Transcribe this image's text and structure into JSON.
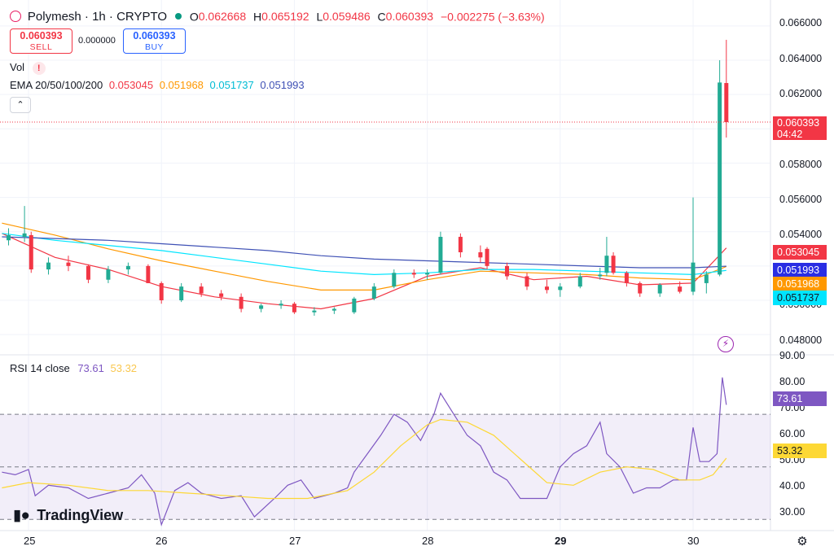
{
  "header": {
    "symbol": "Polymesh · 1h · CRYPTO",
    "o_label": "O",
    "o_value": "0.062668",
    "h_label": "H",
    "h_value": "0.065192",
    "l_label": "L",
    "l_value": "0.059486",
    "c_label": "C",
    "c_value": "0.060393",
    "change": "−0.002275 (−3.63%)"
  },
  "order": {
    "sell_price": "0.060393",
    "sell_label": "SELL",
    "spread": "0.000000",
    "buy_price": "0.060393",
    "buy_label": "BUY"
  },
  "indicators": {
    "vol_label": "Vol",
    "vol_warning": "!",
    "ema_label": "EMA 20/50/100/200",
    "ema20": "0.053045",
    "ema50": "0.051968",
    "ema100": "0.051737",
    "ema200": "0.051993",
    "collapse_icon": "chevron-up-icon"
  },
  "price_axis": {
    "ticks": [
      "0.066000",
      "0.064000",
      "0.062000",
      "0.058000",
      "0.056000",
      "0.054000",
      "0.050000",
      "0.048000"
    ],
    "last_price": "0.060393",
    "countdown": "04:42",
    "ema20_tag": "0.053045",
    "ema200_tag": "0.051993",
    "ema50_tag": "0.051968",
    "ema100_tag": "0.051737"
  },
  "rsi": {
    "label": "RSI 14 close",
    "value": "73.61",
    "ma_value": "53.32",
    "ticks": [
      "90.00",
      "80.00",
      "70.00",
      "60.00",
      "50.00",
      "40.00",
      "30.00"
    ],
    "tag_value": "73.61",
    "tag_ma": "53.32"
  },
  "x_axis": {
    "ticks": [
      "25",
      "26",
      "27",
      "28",
      "29",
      "30"
    ]
  },
  "branding": {
    "logo_text": "TradingView"
  },
  "colors": {
    "up": "#22ab94",
    "down": "#f23645",
    "ema20": "#f23645",
    "ema50": "#ff9800",
    "ema100": "#00e5ff",
    "ema200": "#3f51b5",
    "rsi": "#7e57c2",
    "rsi_ma": "#fdd835"
  },
  "chart_data": [
    {
      "type": "candlestick",
      "title": "Polymesh · 1h · CRYPTO",
      "x_ticks": [
        "25",
        "26",
        "27",
        "28",
        "29",
        "30"
      ],
      "ylim": [
        0.0472,
        0.0668
      ],
      "last_price": 0.060393,
      "candles": [
        {
          "day": 24.85,
          "o": 0.0535,
          "h": 0.0542,
          "l": 0.0532,
          "c": 0.0538
        },
        {
          "day": 24.97,
          "o": 0.0537,
          "h": 0.0555,
          "l": 0.0534,
          "c": 0.0539
        },
        {
          "day": 25.02,
          "o": 0.0538,
          "h": 0.054,
          "l": 0.0516,
          "c": 0.0518
        },
        {
          "day": 25.15,
          "o": 0.0518,
          "h": 0.0525,
          "l": 0.0515,
          "c": 0.0522
        },
        {
          "day": 25.3,
          "o": 0.0522,
          "h": 0.0526,
          "l": 0.0517,
          "c": 0.052
        },
        {
          "day": 25.45,
          "o": 0.052,
          "h": 0.0521,
          "l": 0.051,
          "c": 0.0512
        },
        {
          "day": 25.6,
          "o": 0.0512,
          "h": 0.052,
          "l": 0.051,
          "c": 0.0518
        },
        {
          "day": 25.75,
          "o": 0.0518,
          "h": 0.0522,
          "l": 0.0515,
          "c": 0.052
        },
        {
          "day": 25.9,
          "o": 0.052,
          "h": 0.0521,
          "l": 0.051,
          "c": 0.051
        },
        {
          "day": 26.0,
          "o": 0.051,
          "h": 0.0511,
          "l": 0.0498,
          "c": 0.05
        },
        {
          "day": 26.15,
          "o": 0.05,
          "h": 0.051,
          "l": 0.0499,
          "c": 0.0508
        },
        {
          "day": 26.3,
          "o": 0.0508,
          "h": 0.051,
          "l": 0.0502,
          "c": 0.0504
        },
        {
          "day": 26.45,
          "o": 0.0504,
          "h": 0.0506,
          "l": 0.05,
          "c": 0.0502
        },
        {
          "day": 26.6,
          "o": 0.0502,
          "h": 0.0504,
          "l": 0.0493,
          "c": 0.0495
        },
        {
          "day": 26.75,
          "o": 0.0495,
          "h": 0.0498,
          "l": 0.0493,
          "c": 0.0497
        },
        {
          "day": 26.9,
          "o": 0.0497,
          "h": 0.05,
          "l": 0.0495,
          "c": 0.0498
        },
        {
          "day": 27.0,
          "o": 0.0498,
          "h": 0.0499,
          "l": 0.0492,
          "c": 0.0493
        },
        {
          "day": 27.15,
          "o": 0.0493,
          "h": 0.0496,
          "l": 0.0491,
          "c": 0.0494
        },
        {
          "day": 27.3,
          "o": 0.0494,
          "h": 0.0496,
          "l": 0.0492,
          "c": 0.0495
        },
        {
          "day": 27.45,
          "o": 0.0493,
          "h": 0.0502,
          "l": 0.0492,
          "c": 0.0501
        },
        {
          "day": 27.6,
          "o": 0.0501,
          "h": 0.051,
          "l": 0.05,
          "c": 0.0508
        },
        {
          "day": 27.75,
          "o": 0.0508,
          "h": 0.0518,
          "l": 0.0507,
          "c": 0.0516
        },
        {
          "day": 27.9,
          "o": 0.0516,
          "h": 0.0518,
          "l": 0.0513,
          "c": 0.0515
        },
        {
          "day": 28.0,
          "o": 0.0515,
          "h": 0.0518,
          "l": 0.0512,
          "c": 0.0516
        },
        {
          "day": 28.1,
          "o": 0.0516,
          "h": 0.054,
          "l": 0.0515,
          "c": 0.0537
        },
        {
          "day": 28.25,
          "o": 0.0537,
          "h": 0.0539,
          "l": 0.0525,
          "c": 0.0528
        },
        {
          "day": 28.4,
          "o": 0.0528,
          "h": 0.0532,
          "l": 0.0522,
          "c": 0.0525
        },
        {
          "day": 28.45,
          "o": 0.053,
          "h": 0.0531,
          "l": 0.0518,
          "c": 0.052
        },
        {
          "day": 28.6,
          "o": 0.052,
          "h": 0.0522,
          "l": 0.0512,
          "c": 0.0514
        },
        {
          "day": 28.75,
          "o": 0.0514,
          "h": 0.0516,
          "l": 0.0506,
          "c": 0.0508
        },
        {
          "day": 28.9,
          "o": 0.0508,
          "h": 0.0512,
          "l": 0.0504,
          "c": 0.0506
        },
        {
          "day": 29.0,
          "o": 0.0506,
          "h": 0.051,
          "l": 0.0502,
          "c": 0.0508
        },
        {
          "day": 29.15,
          "o": 0.0508,
          "h": 0.0516,
          "l": 0.0507,
          "c": 0.0514
        },
        {
          "day": 29.3,
          "o": 0.0514,
          "h": 0.0519,
          "l": 0.0512,
          "c": 0.0515
        },
        {
          "day": 29.35,
          "o": 0.0516,
          "h": 0.0537,
          "l": 0.0514,
          "c": 0.0526
        },
        {
          "day": 29.4,
          "o": 0.0526,
          "h": 0.0528,
          "l": 0.0515,
          "c": 0.0516
        },
        {
          "day": 29.5,
          "o": 0.0516,
          "h": 0.0517,
          "l": 0.0508,
          "c": 0.051
        },
        {
          "day": 29.6,
          "o": 0.051,
          "h": 0.0511,
          "l": 0.0502,
          "c": 0.0504
        },
        {
          "day": 29.75,
          "o": 0.0504,
          "h": 0.051,
          "l": 0.0502,
          "c": 0.0509
        },
        {
          "day": 29.9,
          "o": 0.0508,
          "h": 0.0511,
          "l": 0.0504,
          "c": 0.0505
        },
        {
          "day": 30.0,
          "o": 0.0505,
          "h": 0.056,
          "l": 0.0503,
          "c": 0.0522
        },
        {
          "day": 30.1,
          "o": 0.051,
          "h": 0.0517,
          "l": 0.0504,
          "c": 0.0515
        },
        {
          "day": 30.2,
          "o": 0.0515,
          "h": 0.064,
          "l": 0.0514,
          "c": 0.0627
        },
        {
          "day": 30.25,
          "o": 0.06267,
          "h": 0.06519,
          "l": 0.05949,
          "c": 0.06039
        }
      ],
      "series": [
        {
          "name": "EMA 20",
          "x": [
            24.8,
            25.2,
            25.6,
            26.0,
            26.4,
            26.8,
            27.2,
            27.6,
            28.0,
            28.4,
            28.8,
            29.2,
            29.6,
            30.0,
            30.25
          ],
          "values": [
            0.0539,
            0.0525,
            0.0518,
            0.0508,
            0.0502,
            0.0498,
            0.0495,
            0.0501,
            0.0514,
            0.0519,
            0.0512,
            0.0514,
            0.0509,
            0.051,
            0.05305
          ]
        },
        {
          "name": "EMA 50",
          "x": [
            24.8,
            25.2,
            25.6,
            26.0,
            26.4,
            26.8,
            27.2,
            27.6,
            28.0,
            28.4,
            28.8,
            29.2,
            29.6,
            30.0,
            30.25
          ],
          "values": [
            0.0545,
            0.0538,
            0.053,
            0.0523,
            0.0517,
            0.0511,
            0.0506,
            0.0506,
            0.0512,
            0.0517,
            0.0516,
            0.0515,
            0.0513,
            0.0512,
            0.05197
          ]
        },
        {
          "name": "EMA 100",
          "x": [
            24.8,
            25.2,
            25.6,
            26.0,
            26.4,
            26.8,
            27.2,
            27.6,
            28.0,
            28.4,
            28.8,
            29.2,
            29.6,
            30.0,
            30.25
          ],
          "values": [
            0.0539,
            0.0535,
            0.0532,
            0.0529,
            0.0525,
            0.0521,
            0.0517,
            0.0515,
            0.0516,
            0.0518,
            0.0518,
            0.0517,
            0.0516,
            0.0515,
            0.05174
          ]
        },
        {
          "name": "EMA 200",
          "x": [
            24.8,
            25.2,
            25.6,
            26.0,
            26.4,
            26.8,
            27.2,
            27.6,
            28.0,
            28.4,
            28.8,
            29.2,
            29.6,
            30.0,
            30.25
          ],
          "values": [
            0.0537,
            0.0536,
            0.0535,
            0.0533,
            0.0531,
            0.0529,
            0.0526,
            0.0524,
            0.0523,
            0.0522,
            0.0521,
            0.052,
            0.0519,
            0.0519,
            0.05199
          ]
        }
      ]
    },
    {
      "type": "line",
      "title": "RSI 14 close",
      "ylim": [
        27,
        92
      ],
      "band": [
        30,
        70
      ],
      "midline": 50,
      "series": [
        {
          "name": "RSI",
          "x": [
            24.8,
            24.9,
            25.0,
            25.05,
            25.15,
            25.3,
            25.45,
            25.6,
            25.75,
            25.85,
            25.95,
            26.0,
            26.1,
            26.2,
            26.3,
            26.45,
            26.6,
            26.7,
            26.85,
            26.95,
            27.05,
            27.15,
            27.3,
            27.4,
            27.45,
            27.55,
            27.65,
            27.75,
            27.85,
            27.95,
            28.05,
            28.1,
            28.2,
            28.3,
            28.4,
            28.5,
            28.6,
            28.7,
            28.8,
            28.9,
            29.0,
            29.1,
            29.2,
            29.3,
            29.35,
            29.45,
            29.55,
            29.65,
            29.75,
            29.85,
            29.95,
            30.0,
            30.05,
            30.12,
            30.18,
            30.22,
            30.25
          ],
          "values": [
            48,
            47,
            49,
            39,
            43,
            42,
            38,
            40,
            42,
            47,
            40,
            28,
            41,
            44,
            40,
            38,
            39,
            31,
            38,
            43,
            45,
            38,
            40,
            42,
            48,
            55,
            62,
            70,
            67,
            60,
            70,
            78,
            70,
            62,
            58,
            48,
            45,
            38,
            38,
            38,
            50,
            55,
            58,
            67,
            55,
            50,
            40,
            42,
            42,
            45,
            45,
            65,
            52,
            52,
            55,
            84,
            73.61
          ]
        },
        {
          "name": "RSI MA",
          "x": [
            24.8,
            25.0,
            25.3,
            25.6,
            25.9,
            26.2,
            26.5,
            26.8,
            27.1,
            27.4,
            27.6,
            27.8,
            28.0,
            28.1,
            28.3,
            28.5,
            28.7,
            28.9,
            29.1,
            29.3,
            29.5,
            29.7,
            29.9,
            30.05,
            30.15,
            30.25
          ],
          "values": [
            42,
            44,
            43,
            41,
            41,
            40,
            39,
            38,
            38,
            41,
            48,
            58,
            66,
            68,
            67,
            62,
            53,
            44,
            43,
            48,
            50,
            49,
            45,
            45,
            47,
            53.32
          ]
        }
      ]
    }
  ]
}
